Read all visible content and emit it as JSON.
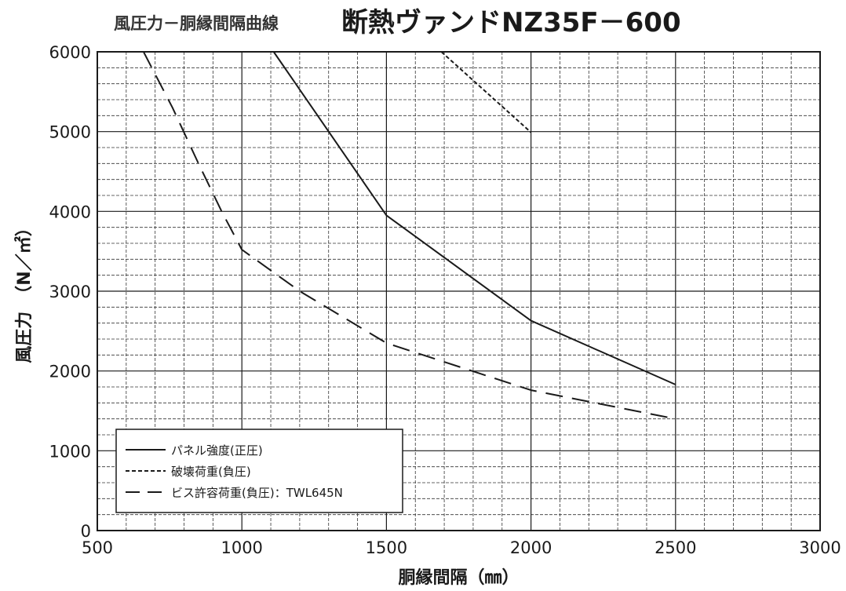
{
  "header": {
    "subtitle": "風圧力－胴縁間隔曲線",
    "title": "断熱ヴァンドNZ35F－600"
  },
  "chart_data": {
    "type": "line",
    "title": "断熱ヴァンドNZ35F－600",
    "subtitle": "風圧力－胴縁間隔曲線",
    "xlabel": "胴縁間隔（㎜）",
    "ylabel": "風圧力　（N／㎡）",
    "xlim": [
      500,
      3000
    ],
    "ylim": [
      0,
      6000
    ],
    "xticks": [
      500,
      1000,
      1500,
      2000,
      2500,
      3000
    ],
    "yticks": [
      0,
      1000,
      2000,
      3000,
      4000,
      5000,
      6000
    ],
    "x_minor_step": 100,
    "y_minor_step": 200,
    "grid": true,
    "legend_position": "bottom-left",
    "series": [
      {
        "name": "パネル強度(正圧)",
        "style": "solid",
        "color": "#1a1a1a",
        "points": [
          [
            1110,
            6000
          ],
          [
            1500,
            3950
          ],
          [
            2000,
            2630
          ],
          [
            2500,
            1830
          ]
        ]
      },
      {
        "name": "破壊荷重(負圧)",
        "style": "dotted",
        "color": "#1a1a1a",
        "points": [
          [
            1690,
            6000
          ],
          [
            2000,
            4990
          ]
        ]
      },
      {
        "name": "ビス許容荷重(負圧)：TWL645N",
        "style": "dashed",
        "color": "#1a1a1a",
        "points": [
          [
            660,
            6000
          ],
          [
            760,
            5300
          ],
          [
            850,
            4600
          ],
          [
            930,
            4000
          ],
          [
            1000,
            3520
          ],
          [
            1200,
            3000
          ],
          [
            1500,
            2350
          ],
          [
            2000,
            1760
          ],
          [
            2500,
            1400
          ]
        ]
      }
    ]
  }
}
